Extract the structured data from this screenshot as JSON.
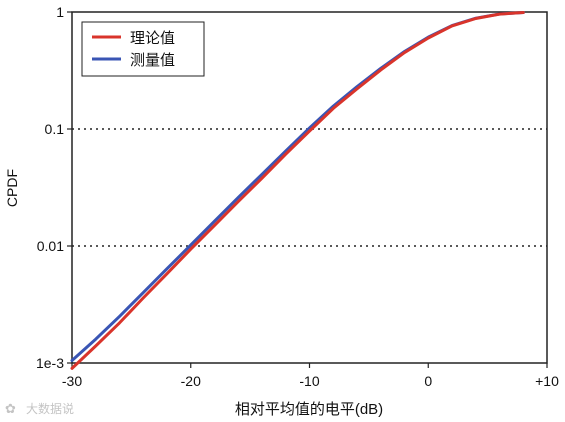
{
  "chart_data": {
    "type": "line",
    "xlabel": "相对平均值的电平(dB)",
    "ylabel": "CPDF",
    "xlim": [
      -30,
      10
    ],
    "ylim": [
      0.001,
      1
    ],
    "yscale": "log",
    "x_ticks": [
      -30,
      -20,
      -10,
      0,
      10
    ],
    "x_tick_labels": [
      "-30",
      "-20",
      "-10",
      "0",
      "+10"
    ],
    "y_ticks": [
      0.001,
      0.01,
      0.1,
      1
    ],
    "y_tick_labels": [
      "1e-3",
      "0.01",
      "0.1",
      "1"
    ],
    "grid": "dotted horizontal lines at 0.01 and 0.1",
    "legend": {
      "position": "top-left"
    },
    "series": [
      {
        "name": "理论值",
        "color": "#d9342b",
        "x": [
          -30,
          -28,
          -26,
          -24,
          -22,
          -20,
          -18,
          -16,
          -14,
          -12,
          -10,
          -8,
          -6,
          -4,
          -2,
          0,
          2,
          4,
          6,
          8
        ],
        "y": [
          0.0009,
          0.0014,
          0.0022,
          0.0036,
          0.0058,
          0.0094,
          0.015,
          0.024,
          0.038,
          0.061,
          0.096,
          0.15,
          0.22,
          0.32,
          0.45,
          0.6,
          0.76,
          0.88,
          0.96,
          0.99
        ]
      },
      {
        "name": "测量值",
        "color": "#3a55b4",
        "x": [
          -30,
          -28,
          -26,
          -24,
          -22,
          -20,
          -18,
          -16,
          -14,
          -12,
          -10,
          -8,
          -6,
          -4,
          -2,
          0,
          2,
          4,
          6,
          8
        ],
        "y": [
          0.00105,
          0.0016,
          0.0025,
          0.004,
          0.0064,
          0.0102,
          0.0163,
          0.026,
          0.041,
          0.065,
          0.102,
          0.157,
          0.23,
          0.33,
          0.46,
          0.61,
          0.765,
          0.885,
          0.962,
          0.99
        ]
      }
    ]
  },
  "watermark": "大数据说"
}
